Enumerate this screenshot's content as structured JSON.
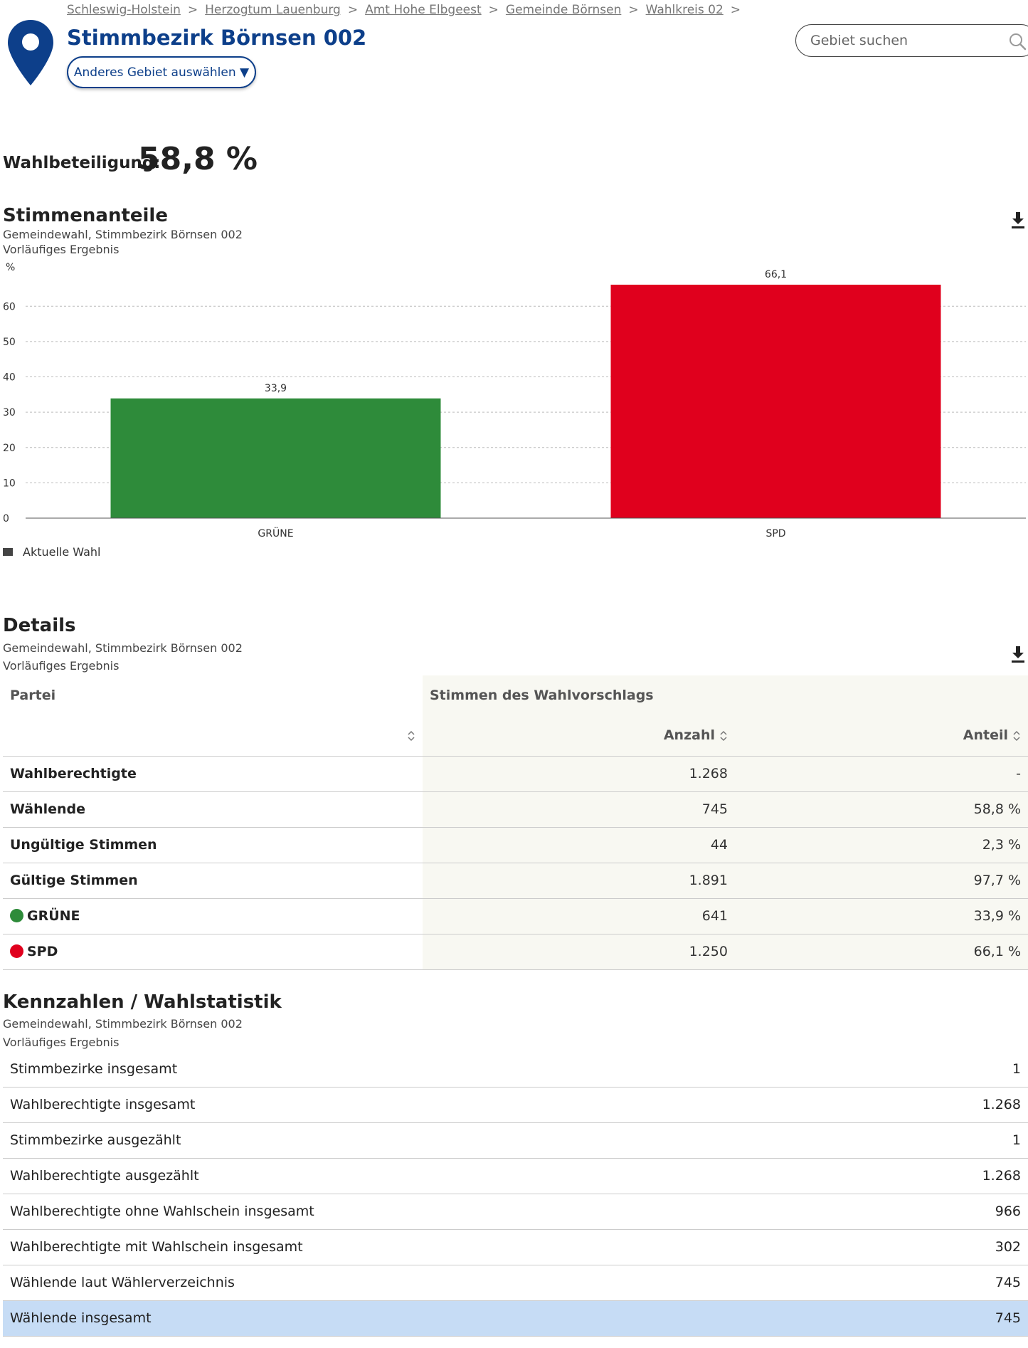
{
  "header": {
    "breadcrumb": [
      "Schleswig-Holstein",
      "Herzogtum Lauenburg",
      "Amt Hohe Elbgeest",
      "Gemeinde Börnsen",
      "Wahlkreis 02"
    ],
    "breadcrumb_separator": ">",
    "title": "Stimmbezirk Börnsen 002",
    "area_select_label": "Anderes Gebiet auswählen ▼",
    "search_placeholder": "Gebiet suchen"
  },
  "turnout": {
    "label": "Wahlbeteiligung:",
    "value": "58,8 %"
  },
  "chart_section": {
    "title": "Stimmenanteile",
    "subtitle1": "Gemeindewahl, Stimmbezirk Börnsen 002",
    "subtitle2": "Vorläufiges Ergebnis",
    "legend": "Aktuelle Wahl"
  },
  "chart_data": {
    "type": "bar",
    "categories": [
      "GRÜNE",
      "SPD"
    ],
    "values": [
      33.9,
      66.1
    ],
    "value_labels": [
      "33,9",
      "66,1"
    ],
    "colors": [
      "#2e8b3a",
      "#e0001d"
    ],
    "ylabel": "%",
    "ylim": [
      0,
      66.1
    ],
    "yticks": [
      0,
      10,
      20,
      30,
      40,
      50,
      60
    ],
    "grid": true,
    "legend_placement": "bottom-left"
  },
  "details": {
    "title": "Details",
    "subtitle1": "Gemeindewahl, Stimmbezirk Börnsen 002",
    "subtitle2": "Vorläufiges Ergebnis",
    "col_party": "Partei",
    "col_group": "Stimmen des Wahlvorschlags",
    "col_count": "Anzahl",
    "col_share": "Anteil",
    "rows": [
      {
        "label": "Wahlberechtigte",
        "count": "1.268",
        "share": "-"
      },
      {
        "label": "Wählende",
        "count": "745",
        "share": "58,8 %"
      },
      {
        "label": "Ungültige Stimmen",
        "count": "44",
        "share": "2,3 %"
      },
      {
        "label": "Gültige Stimmen",
        "count": "1.891",
        "share": "97,7 %"
      },
      {
        "label": "GRÜNE",
        "count": "641",
        "share": "33,9 %",
        "color": "#2e8b3a"
      },
      {
        "label": "SPD",
        "count": "1.250",
        "share": "66,1 %",
        "color": "#e0001d"
      }
    ]
  },
  "stats": {
    "title": "Kennzahlen / Wahlstatistik",
    "subtitle1": "Gemeindewahl, Stimmbezirk Börnsen 002",
    "subtitle2": "Vorläufiges Ergebnis",
    "rows": [
      {
        "label": "Stimmbezirke insgesamt",
        "value": "1"
      },
      {
        "label": "Wahlberechtigte insgesamt",
        "value": "1.268"
      },
      {
        "label": "Stimmbezirke ausgezählt",
        "value": "1"
      },
      {
        "label": "Wahlberechtigte ausgezählt",
        "value": "1.268"
      },
      {
        "label": "Wahlberechtigte ohne Wahlschein insgesamt",
        "value": "966"
      },
      {
        "label": "Wahlberechtigte mit Wahlschein insgesamt",
        "value": "302"
      },
      {
        "label": "Wählende laut Wählerverzeichnis",
        "value": "745"
      },
      {
        "label": "Wählende insgesamt",
        "value": "745"
      }
    ]
  },
  "colors": {
    "brand": "#0d3f8a",
    "highlight_row": "#c6dcf5",
    "table_shade": "#f8f8f2"
  }
}
